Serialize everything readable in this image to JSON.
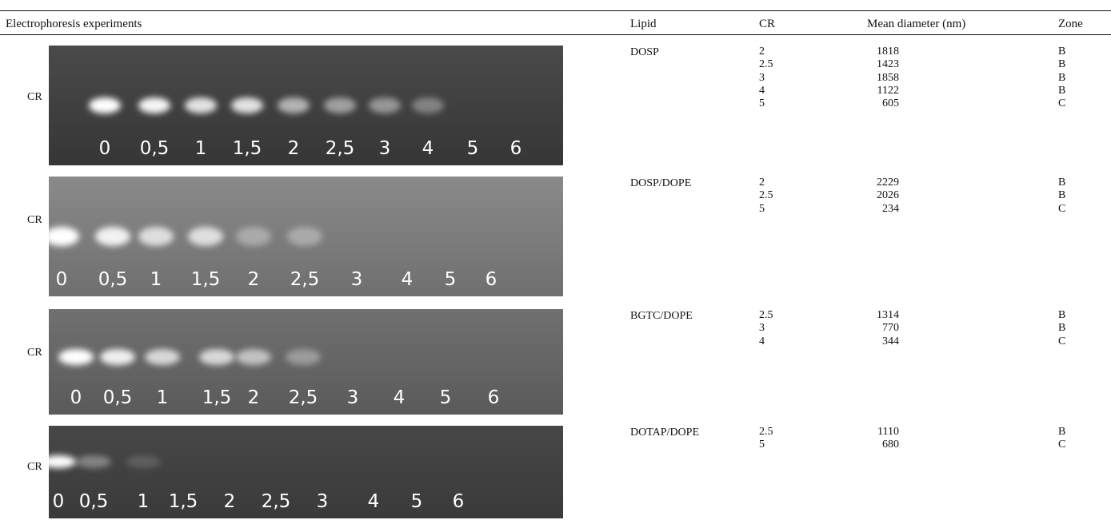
{
  "header": {
    "experiments": "Electrophoresis experiments",
    "lipid": "Lipid",
    "cr": "CR",
    "diameter": "Mean diameter (nm)",
    "zone": "Zone"
  },
  "axis_label": "CR",
  "lanes": [
    "0",
    "0,5",
    "1",
    "1,5",
    "2",
    "2,5",
    "3",
    "4",
    "5",
    "6"
  ],
  "rows": [
    {
      "lipid": "DOSP",
      "cr": [
        "2",
        "2.5",
        "3",
        "4",
        "5"
      ],
      "diameter": [
        "1818",
        "1423",
        "1858",
        "1122",
        "605"
      ],
      "zone": [
        "B",
        "B",
        "B",
        "B",
        "C"
      ]
    },
    {
      "lipid": "DOSP/DOPE",
      "cr": [
        "2",
        "2.5",
        "5"
      ],
      "diameter": [
        "2229",
        "2026",
        "234"
      ],
      "zone": [
        "B",
        "B",
        "C"
      ]
    },
    {
      "lipid": "BGTC/DOPE",
      "cr": [
        "2.5",
        "3",
        "4"
      ],
      "diameter": [
        "1314",
        "770",
        "344"
      ],
      "zone": [
        "B",
        "B",
        "C"
      ]
    },
    {
      "lipid": "DOTAP/DOPE",
      "cr": [
        "2.5",
        "5"
      ],
      "diameter": [
        "1110",
        "680"
      ],
      "zone": [
        "B",
        "C"
      ]
    }
  ],
  "colors": {
    "gel_dark": "#3c3c3c",
    "gel_light": "#5d5d5d",
    "band": "#ffffff",
    "rule": "#111111"
  }
}
